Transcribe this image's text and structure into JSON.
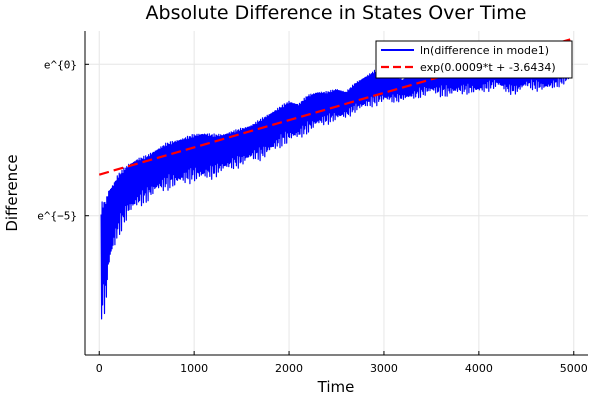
{
  "chart_data": {
    "type": "line",
    "title": "Absolute Difference in States Over Time",
    "xlabel": "Time",
    "ylabel": "Difference",
    "xlim": [
      -150,
      5150
    ],
    "ylim": [
      -9.6,
      1.1
    ],
    "y_scale": "log (natural), values given as natural-log exponent",
    "grid": true,
    "legend_position": "top-right",
    "xticks": [
      0,
      1000,
      2000,
      3000,
      4000,
      5000
    ],
    "xtick_labels": [
      "0",
      "1000",
      "2000",
      "3000",
      "4000",
      "5000"
    ],
    "yticks": [
      0,
      -5
    ],
    "ytick_labels": [
      "e^{0}",
      "e^{−5}"
    ],
    "series": [
      {
        "name": "ln(difference in mode1)",
        "color": "#0000ff",
        "style": "solid",
        "envelope": {
          "t": [
            20,
            35,
            70,
            100,
            150,
            200,
            300,
            400,
            500,
            600,
            700,
            800,
            900,
            1000,
            1100,
            1200,
            1300,
            1400,
            1500,
            1600,
            1700,
            1800,
            1900,
            2000,
            2100,
            2200,
            2300,
            2400,
            2500,
            2600,
            2700,
            2800,
            2900,
            3000,
            3100,
            3200,
            3300,
            3400,
            3500,
            3600,
            3700,
            3800,
            3900,
            4000,
            4100,
            4200,
            4300,
            4400,
            4500,
            4600,
            4700,
            4800,
            4900,
            4980
          ],
          "upper": [
            -4.6,
            -4.5,
            -4.4,
            -4.1,
            -3.9,
            -3.6,
            -3.3,
            -3.1,
            -3.0,
            -2.8,
            -2.6,
            -2.5,
            -2.4,
            -2.3,
            -2.25,
            -2.3,
            -2.3,
            -2.2,
            -2.1,
            -2.0,
            -1.8,
            -1.6,
            -1.4,
            -1.2,
            -1.3,
            -1.0,
            -0.9,
            -0.9,
            -0.8,
            -0.9,
            -0.6,
            -0.4,
            -0.2,
            -0.1,
            -0.3,
            -0.5,
            -0.2,
            0.0,
            0.1,
            0.15,
            0.2,
            0.1,
            0.1,
            0.05,
            0.2,
            0.3,
            0.1,
            0.0,
            0.2,
            0.3,
            0.1,
            0.15,
            0.3,
            0.6
          ],
          "lower": [
            -9.4,
            -8.4,
            -8.4,
            -7.0,
            -6.3,
            -5.8,
            -5.1,
            -4.8,
            -4.6,
            -4.3,
            -4.2,
            -4.1,
            -4.0,
            -3.9,
            -3.9,
            -3.8,
            -3.6,
            -3.5,
            -3.4,
            -3.2,
            -3.2,
            -3.0,
            -2.8,
            -2.6,
            -2.5,
            -2.3,
            -2.1,
            -2.0,
            -1.9,
            -1.8,
            -1.6,
            -1.5,
            -1.4,
            -1.3,
            -1.3,
            -1.2,
            -1.2,
            -1.1,
            -1.0,
            -1.1,
            -1.1,
            -1.0,
            -1.0,
            -1.0,
            -0.9,
            -0.8,
            -1.0,
            -1.0,
            -0.8,
            -0.9,
            -0.9,
            -0.8,
            -0.7,
            -0.6
          ]
        }
      },
      {
        "name": "exp(0.0009*t + -3.6434)",
        "color": "#ff0000",
        "style": "dashed",
        "slope": 0.0009,
        "intercept": -3.6434,
        "x": [
          0,
          5000
        ],
        "y": [
          -3.6434,
          0.8566
        ]
      }
    ]
  }
}
